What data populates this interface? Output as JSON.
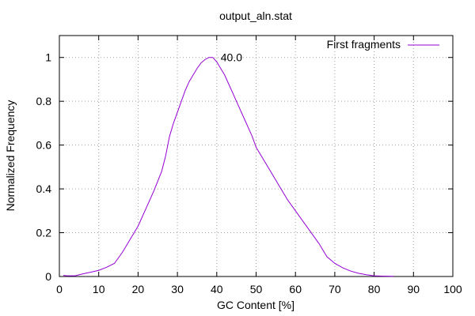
{
  "chart_data": {
    "type": "line",
    "title": "output_aln.stat",
    "xlabel": "GC Content [%]",
    "ylabel": "Normalized Frequency",
    "xlim": [
      0,
      100
    ],
    "ylim": [
      0,
      1.1
    ],
    "xticks": [
      0,
      10,
      20,
      30,
      40,
      50,
      60,
      70,
      80,
      90,
      100
    ],
    "yticks": [
      0,
      0.2,
      0.4,
      0.6,
      0.8,
      1
    ],
    "xtick_labels": [
      "0",
      "10",
      "20",
      "30",
      "40",
      "50",
      "60",
      "70",
      "80",
      "90",
      "100"
    ],
    "ytick_labels": [
      "0",
      "0.2",
      "0.4",
      "0.6",
      "0.8",
      "1"
    ],
    "grid": true,
    "legend_position": "top-right",
    "series": [
      {
        "name": "First fragments",
        "color": "#9400d3",
        "x": [
          1,
          2,
          4,
          6,
          8,
          10,
          12,
          14,
          16,
          18,
          20,
          22,
          24,
          26,
          27,
          28,
          29,
          30,
          31,
          32,
          33,
          34,
          35,
          36,
          37,
          38,
          39,
          40,
          41,
          42,
          43,
          44,
          45,
          46,
          47,
          48,
          49,
          50,
          52,
          54,
          56,
          58,
          60,
          62,
          64,
          66,
          68,
          70,
          72,
          74,
          76,
          78,
          80,
          82,
          85
        ],
        "y": [
          0.005,
          0.003,
          0.003,
          0.012,
          0.02,
          0.028,
          0.042,
          0.06,
          0.11,
          0.17,
          0.23,
          0.31,
          0.39,
          0.48,
          0.55,
          0.64,
          0.7,
          0.75,
          0.8,
          0.85,
          0.89,
          0.92,
          0.95,
          0.975,
          0.99,
          1.0,
          1.0,
          0.98,
          0.95,
          0.92,
          0.88,
          0.84,
          0.8,
          0.76,
          0.72,
          0.68,
          0.64,
          0.59,
          0.53,
          0.47,
          0.41,
          0.35,
          0.3,
          0.25,
          0.2,
          0.15,
          0.09,
          0.06,
          0.04,
          0.025,
          0.015,
          0.008,
          0.003,
          0.002,
          0.001
        ]
      }
    ],
    "annotations": [
      {
        "text": "40.0",
        "x": 41,
        "y": 1.0
      }
    ]
  }
}
